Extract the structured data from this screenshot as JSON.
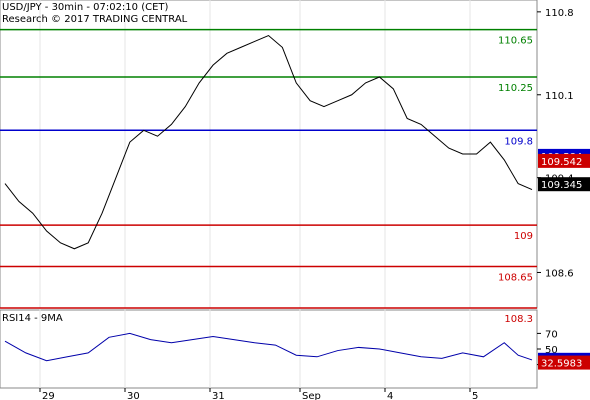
{
  "chart_data": [
    {
      "type": "candlestick",
      "title": "USD/JPY - 30min - 07:02:10 (CET)",
      "subtitle": "Research © 2017 TRADING CENTRAL",
      "ylim": [
        108.3,
        110.9
      ],
      "y_ticks": [
        110.8,
        110.1,
        109.4,
        108.6
      ],
      "x_ticks": [
        "29",
        "30",
        "31",
        "Sep",
        "4",
        "5"
      ],
      "horizontal_levels": [
        {
          "value": 110.65,
          "label": "110.65",
          "color": "#008000"
        },
        {
          "value": 110.25,
          "label": "110.25",
          "color": "#008000"
        },
        {
          "value": 109.8,
          "label": "109.8",
          "color": "#0000cc"
        },
        {
          "value": 109.0,
          "label": "109",
          "color": "#cc0000"
        },
        {
          "value": 108.65,
          "label": "108.65",
          "color": "#cc0000"
        },
        {
          "value": 108.3,
          "label": "108.3",
          "color": "#cc0000"
        }
      ],
      "price_markers": [
        {
          "value": 109.584,
          "label": "109.584",
          "bg": "#0000cc"
        },
        {
          "value": 109.542,
          "label": "109.542",
          "bg": "#cc0000"
        },
        {
          "value": 109.345,
          "label": "109.345",
          "bg": "#000000"
        }
      ],
      "price_path": [
        [
          0,
          109.35
        ],
        [
          4,
          109.2
        ],
        [
          8,
          109.1
        ],
        [
          12,
          108.95
        ],
        [
          16,
          108.85
        ],
        [
          20,
          108.8
        ],
        [
          24,
          108.85
        ],
        [
          28,
          109.1
        ],
        [
          32,
          109.4
        ],
        [
          36,
          109.7
        ],
        [
          40,
          109.8
        ],
        [
          44,
          109.75
        ],
        [
          48,
          109.85
        ],
        [
          52,
          110.0
        ],
        [
          56,
          110.2
        ],
        [
          60,
          110.35
        ],
        [
          64,
          110.45
        ],
        [
          68,
          110.5
        ],
        [
          72,
          110.55
        ],
        [
          76,
          110.6
        ],
        [
          80,
          110.5
        ],
        [
          84,
          110.2
        ],
        [
          88,
          110.05
        ],
        [
          92,
          110.0
        ],
        [
          96,
          110.05
        ],
        [
          100,
          110.1
        ],
        [
          104,
          110.2
        ],
        [
          108,
          110.25
        ],
        [
          112,
          110.15
        ],
        [
          116,
          109.9
        ],
        [
          120,
          109.85
        ],
        [
          124,
          109.75
        ],
        [
          128,
          109.65
        ],
        [
          132,
          109.6
        ],
        [
          136,
          109.6
        ],
        [
          140,
          109.7
        ],
        [
          144,
          109.55
        ],
        [
          148,
          109.35
        ],
        [
          152,
          109.3
        ]
      ]
    },
    {
      "type": "line",
      "title": "RSI14 - 9MA",
      "ylim": [
        0,
        100
      ],
      "y_ticks": [
        70,
        50,
        30
      ],
      "price_markers": [
        {
          "value": 36.1333,
          "label": "36.1333",
          "bg": "#0000cc"
        },
        {
          "value": 32.5983,
          "label": "32.5983",
          "bg": "#cc0000"
        }
      ],
      "rsi_path": [
        [
          0,
          60
        ],
        [
          6,
          45
        ],
        [
          12,
          35
        ],
        [
          18,
          40
        ],
        [
          24,
          45
        ],
        [
          30,
          65
        ],
        [
          36,
          70
        ],
        [
          42,
          62
        ],
        [
          48,
          58
        ],
        [
          54,
          62
        ],
        [
          60,
          66
        ],
        [
          66,
          62
        ],
        [
          72,
          58
        ],
        [
          78,
          55
        ],
        [
          84,
          42
        ],
        [
          90,
          40
        ],
        [
          96,
          48
        ],
        [
          102,
          52
        ],
        [
          108,
          50
        ],
        [
          114,
          45
        ],
        [
          120,
          40
        ],
        [
          126,
          38
        ],
        [
          132,
          45
        ],
        [
          138,
          40
        ],
        [
          144,
          58
        ],
        [
          148,
          42
        ],
        [
          152,
          36
        ]
      ]
    }
  ]
}
